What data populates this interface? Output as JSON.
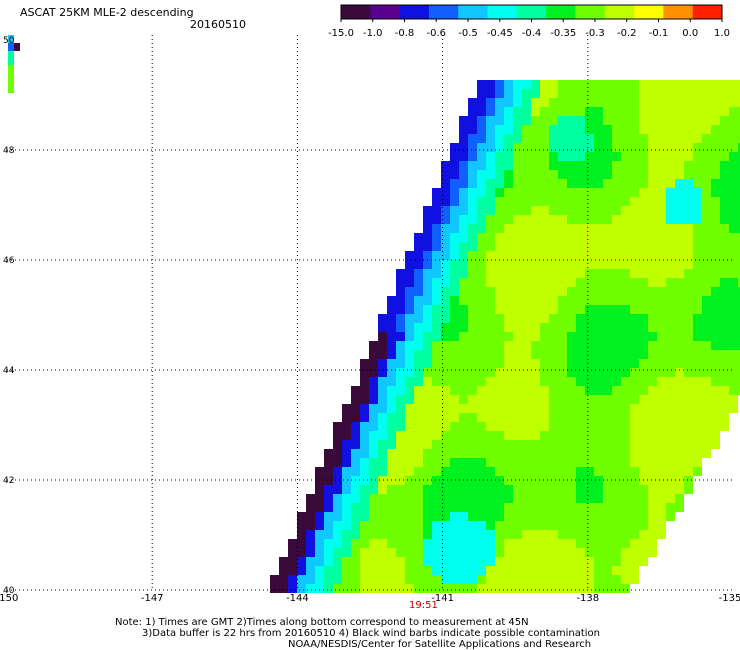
{
  "title": "ASCAT 25KM MLE-2 descending",
  "date": "20160510",
  "colorbar": {
    "labels": [
      "-15.0",
      "-1.0",
      "-0.8",
      "-0.6",
      "-0.5",
      "-0.45",
      "-0.4",
      "-0.35",
      "-0.3",
      "-0.2",
      "-0.1",
      "0.0",
      "1.0"
    ],
    "colors": [
      "#3a0a3a",
      "#5a0090",
      "#1010e0",
      "#1060ff",
      "#10c8ff",
      "#00ffee",
      "#00ffa0",
      "#00f020",
      "#70ff00",
      "#c0ff00",
      "#ffff00",
      "#ff9000",
      "#ff2000"
    ]
  },
  "axes": {
    "lon_ticks": [
      "-150",
      "-147",
      "-144",
      "-141",
      "-138",
      "-135"
    ],
    "lat_ticks": [
      "40",
      "42",
      "44",
      "46",
      "48",
      "50"
    ]
  },
  "time_label": "19:51",
  "notes": [
    "Note: 1) Times are GMT 2)Times along bottom correspond to measurement at 45N",
    "3)Data buffer is 22 hrs from 20160510 4) Black wind barbs indicate possible contamination",
    "NOAA/NESDIS/Center for Satellite Applications and Research"
  ]
}
